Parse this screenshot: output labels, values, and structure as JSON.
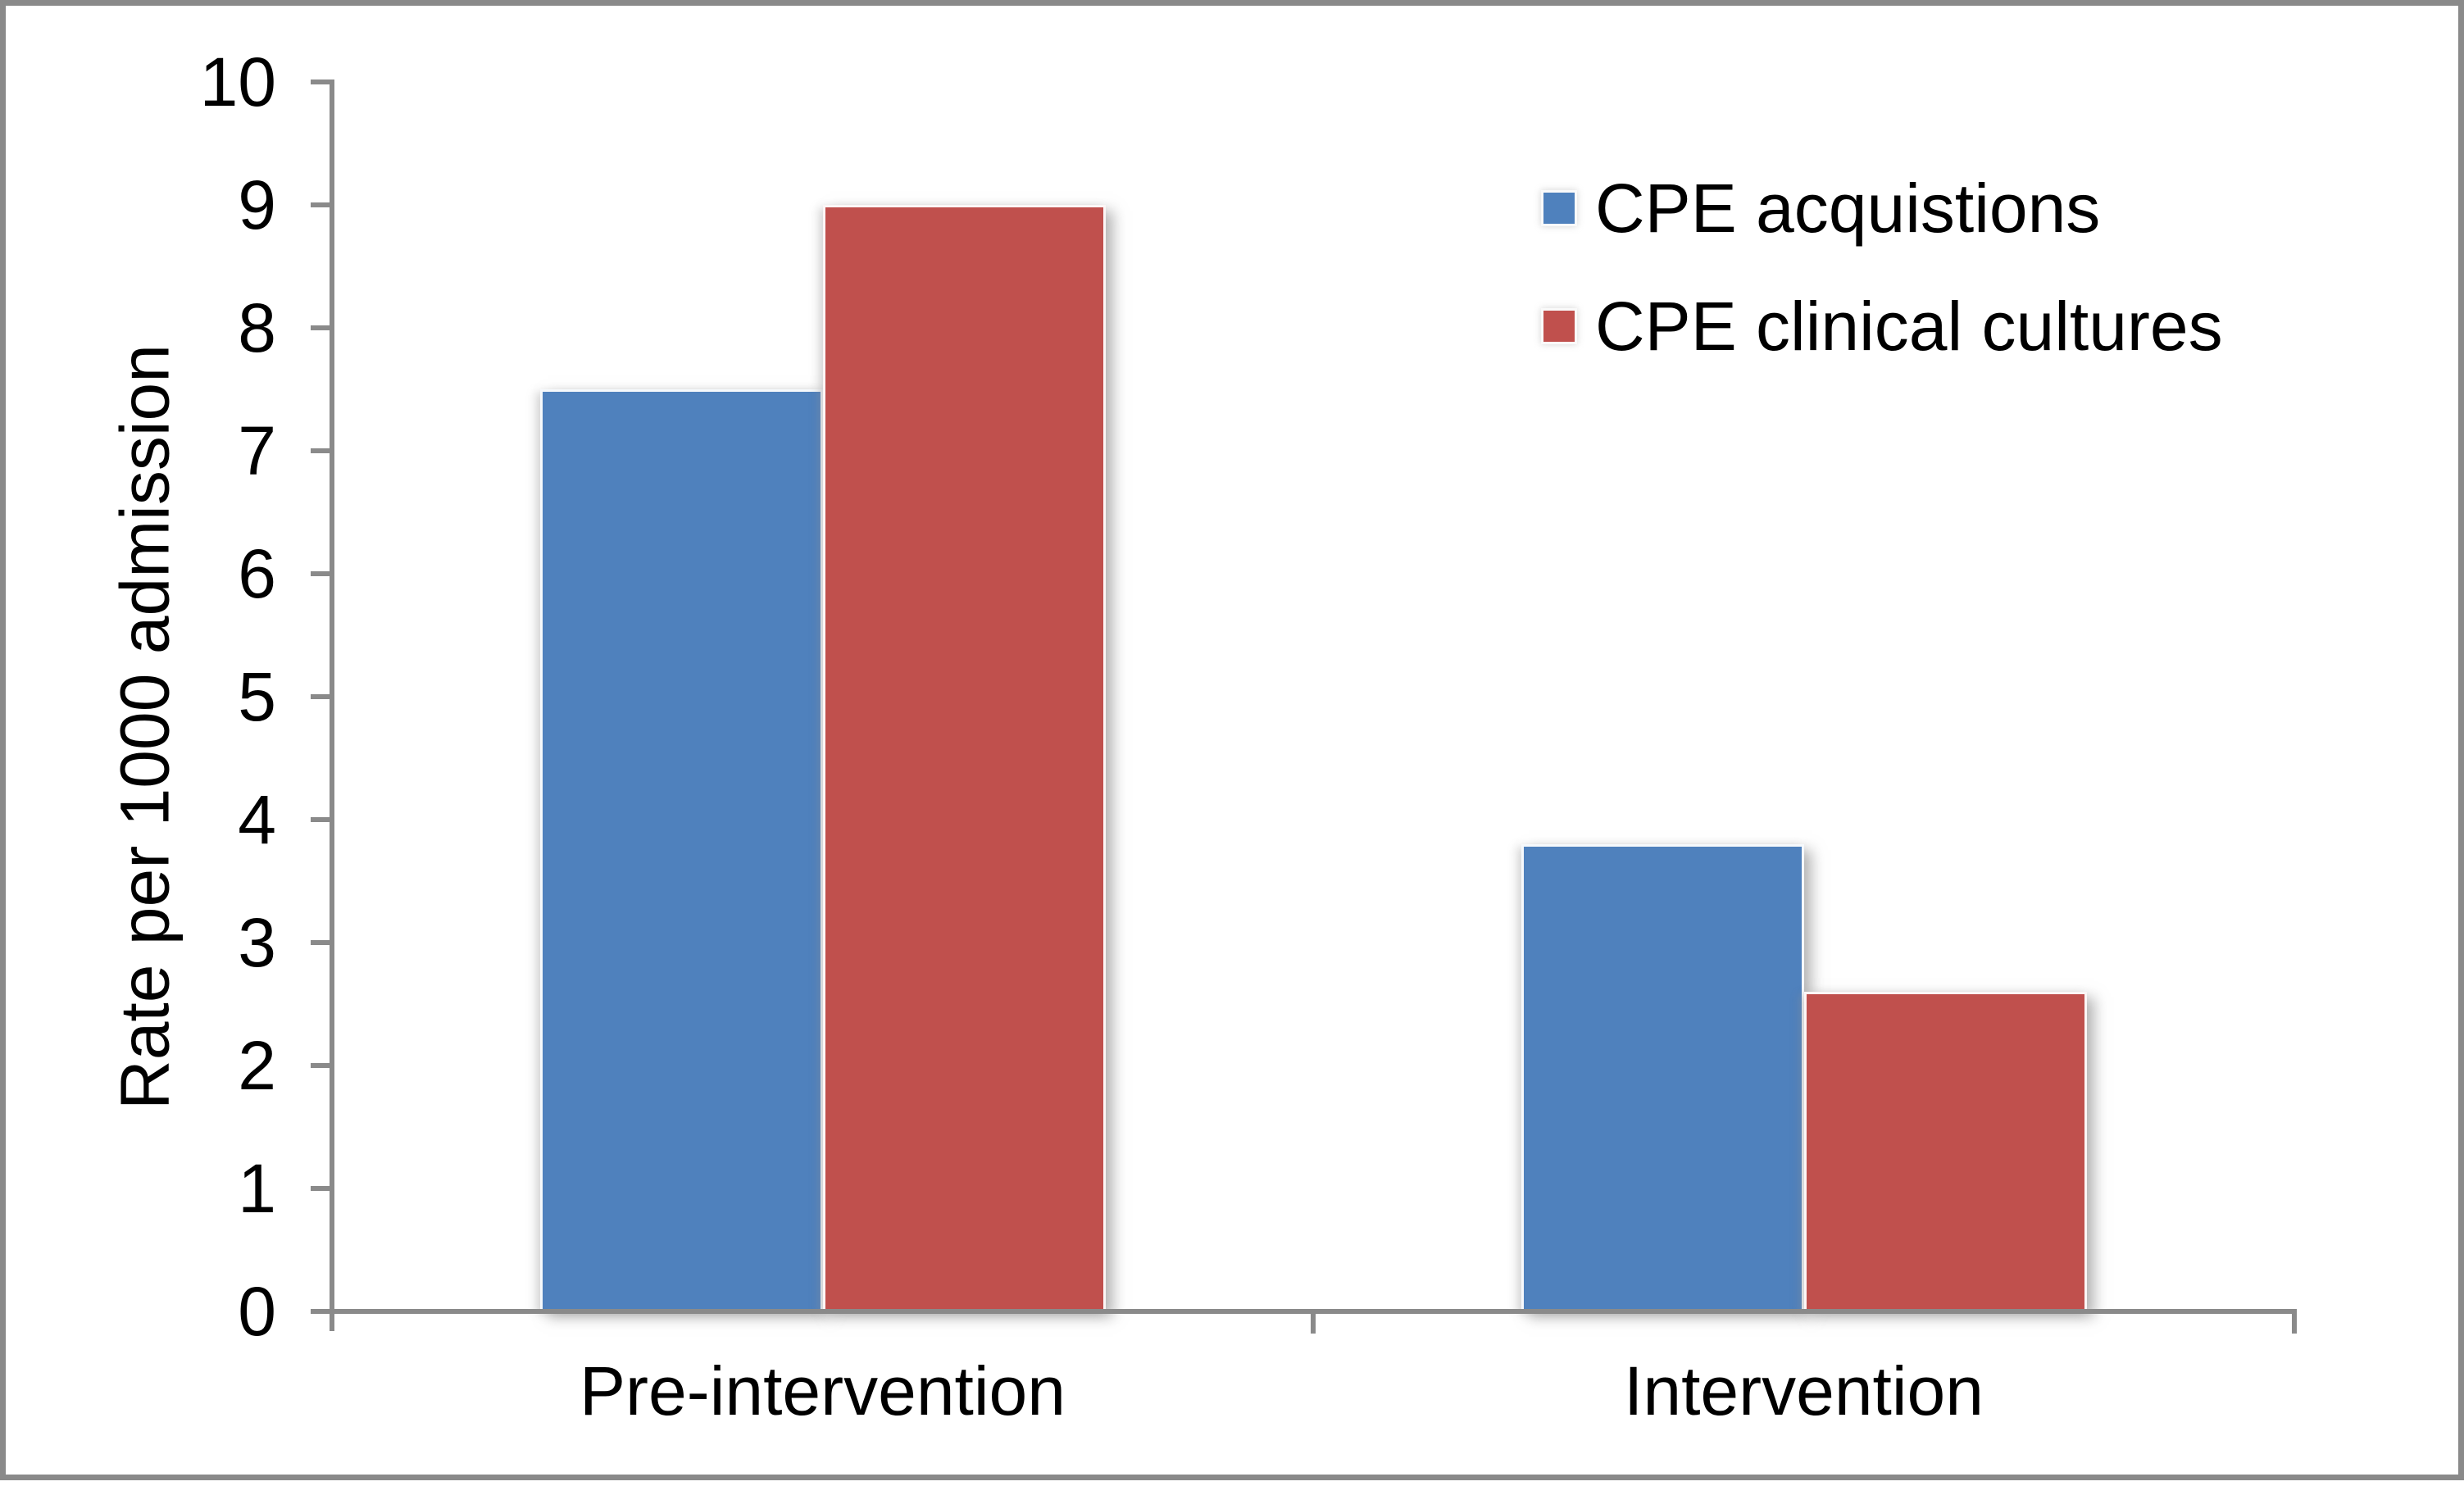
{
  "figure": {
    "frame_border_color": "#8a8a8a",
    "background_color": "#ffffff",
    "text_color": "#000000"
  },
  "chart_data": {
    "type": "bar",
    "title": "",
    "xlabel": "",
    "ylabel": "Rate per 1000 admission",
    "categories": [
      "Pre-intervention",
      "Intervention"
    ],
    "series": [
      {
        "name": "CPE acquistions",
        "color": "#4F81BD",
        "values": [
          7.5,
          3.8
        ]
      },
      {
        "name": "CPE clinical cultures",
        "color": "#C0504D",
        "values": [
          9.0,
          2.6
        ]
      }
    ],
    "ylim": [
      0,
      10
    ],
    "ytick_step": 1,
    "ytick_labels": [
      "0",
      "1",
      "2",
      "3",
      "4",
      "5",
      "6",
      "7",
      "8",
      "9",
      "10"
    ],
    "grid": false,
    "legend_position": "upper-right",
    "axis_color": "#8a8a8a"
  }
}
